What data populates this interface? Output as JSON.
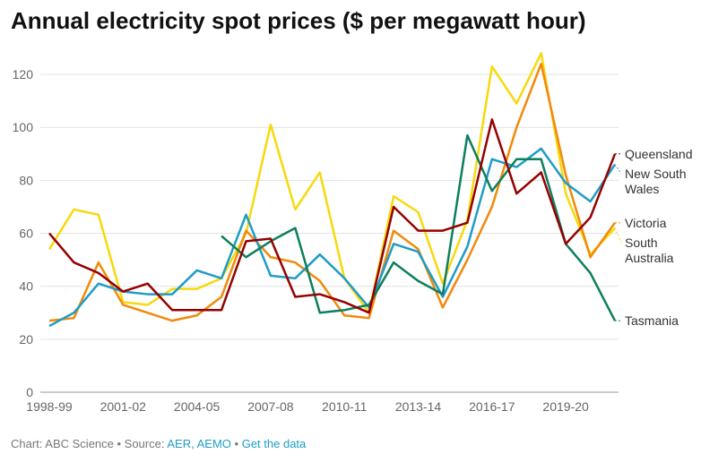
{
  "chart_data": {
    "type": "line",
    "title": "Annual electricity spot prices ($ per megawatt hour)",
    "categories": [
      "1998-99",
      null,
      null,
      "2001-02",
      null,
      null,
      "2004-05",
      null,
      null,
      "2007-08",
      null,
      null,
      "2010-11",
      null,
      null,
      "2013-14",
      null,
      null,
      "2016-17",
      null,
      null,
      "2019-20",
      null,
      null
    ],
    "series": [
      {
        "name": "South Australia",
        "color": "#f7d90c",
        "values": [
          54,
          69,
          67,
          34,
          33,
          39,
          39,
          43,
          60,
          101,
          69,
          83,
          43,
          30,
          74,
          68,
          41,
          65,
          123,
          109,
          128,
          75,
          52,
          62
        ]
      },
      {
        "name": "Victoria",
        "color": "#f08a0b",
        "values": [
          27,
          28,
          49,
          33,
          30,
          27,
          29,
          36,
          61,
          51,
          49,
          42,
          29,
          28,
          61,
          54,
          32,
          50,
          70,
          100,
          124,
          82,
          51,
          64
        ]
      },
      {
        "name": "New South Wales",
        "color": "#1f9cc6",
        "values": [
          25,
          30,
          41,
          38,
          37,
          37,
          46,
          43,
          67,
          44,
          43,
          52,
          43,
          32,
          56,
          53,
          36,
          55,
          88,
          85,
          92,
          79,
          72,
          86
        ]
      },
      {
        "name": "Tasmania",
        "color": "#0d7f5e",
        "values": [
          null,
          null,
          null,
          null,
          null,
          null,
          null,
          59,
          51,
          57,
          62,
          30,
          31,
          33,
          49,
          42,
          37,
          97,
          76,
          88,
          88,
          56,
          45,
          27
        ]
      },
      {
        "name": "Queensland",
        "color": "#960000",
        "values": [
          60,
          49,
          45,
          38,
          41,
          31,
          31,
          31,
          57,
          58,
          36,
          37,
          34,
          30,
          70,
          61,
          61,
          64,
          103,
          75,
          83,
          56,
          66,
          90
        ]
      }
    ],
    "ylim": [
      0,
      130
    ],
    "yticks": [
      0,
      20,
      40,
      60,
      80,
      100,
      120
    ],
    "grid": true,
    "footer": {
      "credit": "Chart: ABC Science • Source:",
      "sources": "AER, AEMO",
      "separator": "•",
      "link": "Get the data"
    }
  }
}
